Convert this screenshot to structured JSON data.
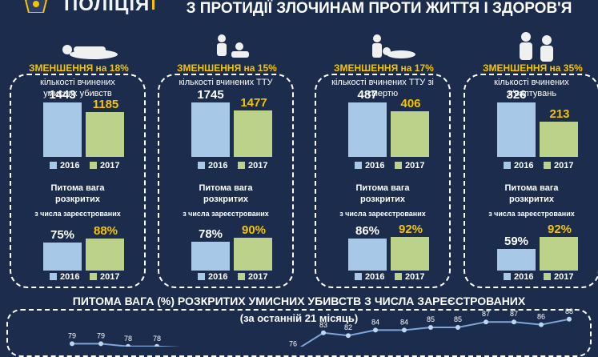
{
  "header": {
    "logo_text": "ПОЛІЦІЯ",
    "title": "З ПРОТИДІЇ ЗЛОЧИНАМ ПРОТИ ЖИТТЯ І ЗДОРОВ'Я"
  },
  "colors": {
    "bg": "#1b2c4d",
    "bar_2016": "#a8c8e8",
    "bar_2017": "#bcd18a",
    "accent": "#f5c400"
  },
  "panels": [
    {
      "reduction": "ЗМЕНШЕННЯ на 18%",
      "desc": "кількості вчинених умисних убивств",
      "icon": "victim-body-icon",
      "counts": [
        1443,
        1185
      ],
      "count_labels": [
        "1443",
        "1185"
      ],
      "rate_title": "Питома вага розкритих",
      "rate_sub": "з числа зареєстрованих",
      "rates": [
        75,
        88
      ],
      "rate_labels": [
        "75%",
        "88%"
      ]
    },
    {
      "reduction": "ЗМЕНШЕННЯ на 15%",
      "desc": "кількості вчинених ТТУ",
      "icon": "assault-icon",
      "counts": [
        1745,
        1477
      ],
      "count_labels": [
        "1745",
        "1477"
      ],
      "rate_title": "Питома вага розкритих",
      "rate_sub": "з числа зареєстрованих",
      "rates": [
        78,
        90
      ],
      "rate_labels": [
        "78%",
        "90%"
      ]
    },
    {
      "reduction": "ЗМЕНШЕННЯ на 17%",
      "desc": "кількості вчинених ТТУ зі смертю",
      "icon": "fatal-assault-icon",
      "counts": [
        487,
        406
      ],
      "count_labels": [
        "487",
        "406"
      ],
      "rate_title": "Питома вага розкритих",
      "rate_sub": "з числа зареєстрованих",
      "rates": [
        86,
        92
      ],
      "rate_labels": [
        "86%",
        "92%"
      ]
    },
    {
      "reduction": "ЗМЕНШЕННЯ на 35%",
      "desc": "кількості вчинених зґвалтувань",
      "icon": "attacker-icon",
      "counts": [
        326,
        213
      ],
      "count_labels": [
        "326",
        "213"
      ],
      "rate_title": "Питома вага розкритих",
      "rate_sub": "з числа зареєстрованих",
      "rates": [
        59,
        92
      ],
      "rate_labels": [
        "59%",
        "92%"
      ]
    }
  ],
  "legend": {
    "y2016": "2016",
    "y2017": "2017"
  },
  "bottom": {
    "title": "ПИТОМА ВАГА (%) РОЗКРИТИХ УМИСНИХ УБИВСТВ З ЧИСЛА ЗАРЕЄСТРОВАНИХ",
    "subtitle": "(за останній 21 місяць)"
  },
  "chart_data": {
    "type": "line",
    "title": "ПИТОМА ВАГА (%) РОЗКРИТИХ УМИСНИХ УБИВСТВ З ЧИСЛА ЗАРЕЄСТРОВАНИХ",
    "subtitle": "(за останній 21 місяць)",
    "ylabel": "%",
    "values": [
      79,
      79,
      78,
      78,
      76,
      83,
      82,
      84,
      84,
      85,
      85,
      87,
      87,
      86,
      88
    ],
    "value_labels": [
      "79",
      "79",
      "78",
      "78",
      "76",
      "83",
      "82",
      "84",
      "84",
      "85",
      "85",
      "87",
      "87",
      "86",
      "88"
    ],
    "ylim": [
      70,
      95
    ]
  }
}
